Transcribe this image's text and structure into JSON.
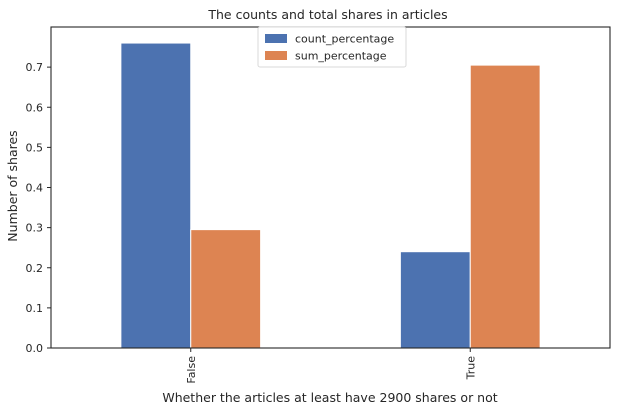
{
  "chart_data": {
    "type": "bar",
    "title": "The counts and total shares in articles",
    "xlabel": "Whether the articles at least have 2900 shares or not",
    "ylabel": "Number of shares",
    "categories": [
      "False",
      "True"
    ],
    "series": [
      {
        "name": "count_percentage",
        "values": [
          0.76,
          0.24
        ],
        "color": "#4c72b0"
      },
      {
        "name": "sum_percentage",
        "values": [
          0.295,
          0.705
        ],
        "color": "#dd8452"
      }
    ],
    "ylim": [
      0,
      0.8
    ],
    "yticks": [
      "0.0",
      "0.1",
      "0.2",
      "0.3",
      "0.4",
      "0.5",
      "0.6",
      "0.7"
    ],
    "grid": false,
    "legend_position": "upper center"
  }
}
